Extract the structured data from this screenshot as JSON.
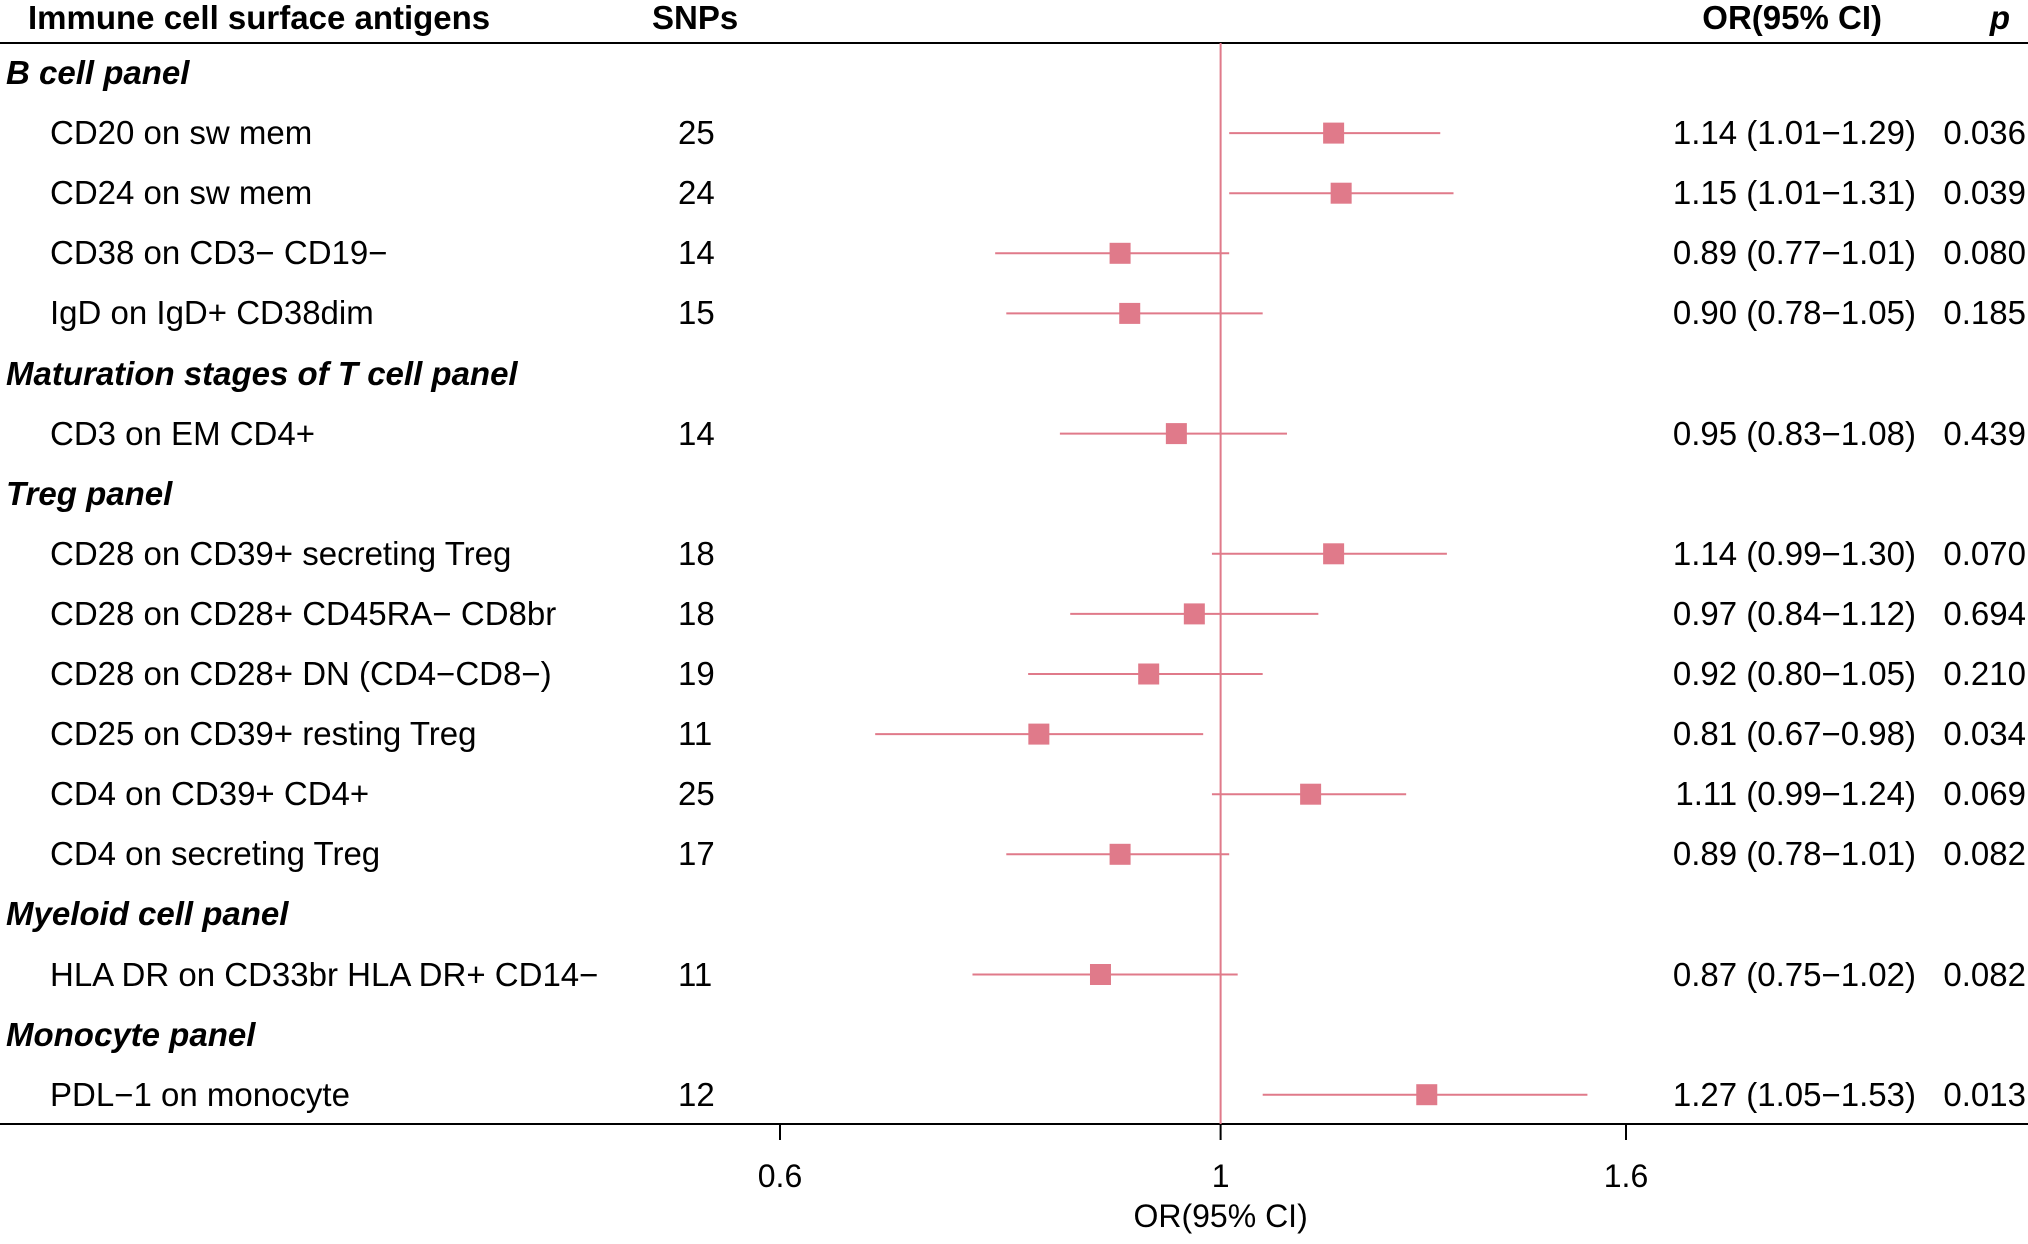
{
  "headers": {
    "antigen": "Immune cell surface antigens",
    "snps": "SNPs",
    "or": "OR(95% CI)",
    "p": "p"
  },
  "colors": {
    "point": "#e07a8a",
    "refline": "#e07a8a",
    "axis": "#000000"
  },
  "chart_data": {
    "type": "forest",
    "xlabel": "OR(95% CI)",
    "xlim": [
      0.4,
      2.1
    ],
    "xticks": [
      0.6,
      1,
      1.6
    ],
    "xtick_labels": [
      "0.6",
      "1",
      "1.6"
    ],
    "reference_line": 1,
    "rows": [
      {
        "kind": "group",
        "label": "B cell panel"
      },
      {
        "kind": "item",
        "label": "CD20 on sw mem",
        "snps": "25",
        "or": 1.14,
        "lo": 1.01,
        "hi": 1.29,
        "or_text": "1.14 (1.01−1.29)",
        "p": "0.036"
      },
      {
        "kind": "item",
        "label": "CD24 on sw mem",
        "snps": "24",
        "or": 1.15,
        "lo": 1.01,
        "hi": 1.31,
        "or_text": "1.15 (1.01−1.31)",
        "p": "0.039"
      },
      {
        "kind": "item",
        "label": "CD38 on CD3− CD19−",
        "snps": "14",
        "or": 0.89,
        "lo": 0.77,
        "hi": 1.01,
        "or_text": "0.89 (0.77−1.01)",
        "p": "0.080"
      },
      {
        "kind": "item",
        "label": "IgD on IgD+ CD38dim",
        "snps": "15",
        "or": 0.9,
        "lo": 0.78,
        "hi": 1.05,
        "or_text": "0.90 (0.78−1.05)",
        "p": "0.185"
      },
      {
        "kind": "group",
        "label": "Maturation stages of T cell panel"
      },
      {
        "kind": "item",
        "label": "CD3 on EM CD4+",
        "snps": "14",
        "or": 0.95,
        "lo": 0.83,
        "hi": 1.08,
        "or_text": "0.95 (0.83−1.08)",
        "p": "0.439"
      },
      {
        "kind": "group",
        "label": "Treg panel"
      },
      {
        "kind": "item",
        "label": "CD28 on CD39+ secreting Treg",
        "snps": "18",
        "or": 1.14,
        "lo": 0.99,
        "hi": 1.3,
        "or_text": "1.14 (0.99−1.30)",
        "p": "0.070"
      },
      {
        "kind": "item",
        "label": "CD28 on CD28+ CD45RA− CD8br",
        "snps": "18",
        "or": 0.97,
        "lo": 0.84,
        "hi": 1.12,
        "or_text": "0.97 (0.84−1.12)",
        "p": "0.694"
      },
      {
        "kind": "item",
        "label": "CD28 on CD28+ DN (CD4−CD8−)",
        "snps": "19",
        "or": 0.92,
        "lo": 0.8,
        "hi": 1.05,
        "or_text": "0.92 (0.80−1.05)",
        "p": "0.210"
      },
      {
        "kind": "item",
        "label": "CD25 on CD39+ resting Treg",
        "snps": "11",
        "or": 0.81,
        "lo": 0.67,
        "hi": 0.98,
        "or_text": "0.81 (0.67−0.98)",
        "p": "0.034"
      },
      {
        "kind": "item",
        "label": "CD4 on CD39+ CD4+",
        "snps": "25",
        "or": 1.11,
        "lo": 0.99,
        "hi": 1.24,
        "or_text": "1.11 (0.99−1.24)",
        "p": "0.069"
      },
      {
        "kind": "item",
        "label": "CD4 on secreting Treg",
        "snps": "17",
        "or": 0.89,
        "lo": 0.78,
        "hi": 1.01,
        "or_text": "0.89 (0.78−1.01)",
        "p": "0.082"
      },
      {
        "kind": "group",
        "label": "Myeloid cell panel"
      },
      {
        "kind": "item",
        "label": "HLA DR on CD33br HLA DR+ CD14−",
        "snps": "11",
        "or": 0.87,
        "lo": 0.75,
        "hi": 1.02,
        "or_text": "0.87 (0.75−1.02)",
        "p": "0.082"
      },
      {
        "kind": "group",
        "label": "Monocyte panel"
      },
      {
        "kind": "item",
        "label": "PDL−1 on monocyte",
        "snps": "12",
        "or": 1.27,
        "lo": 1.05,
        "hi": 1.53,
        "or_text": "1.27 (1.05−1.53)",
        "p": "0.013"
      }
    ]
  }
}
